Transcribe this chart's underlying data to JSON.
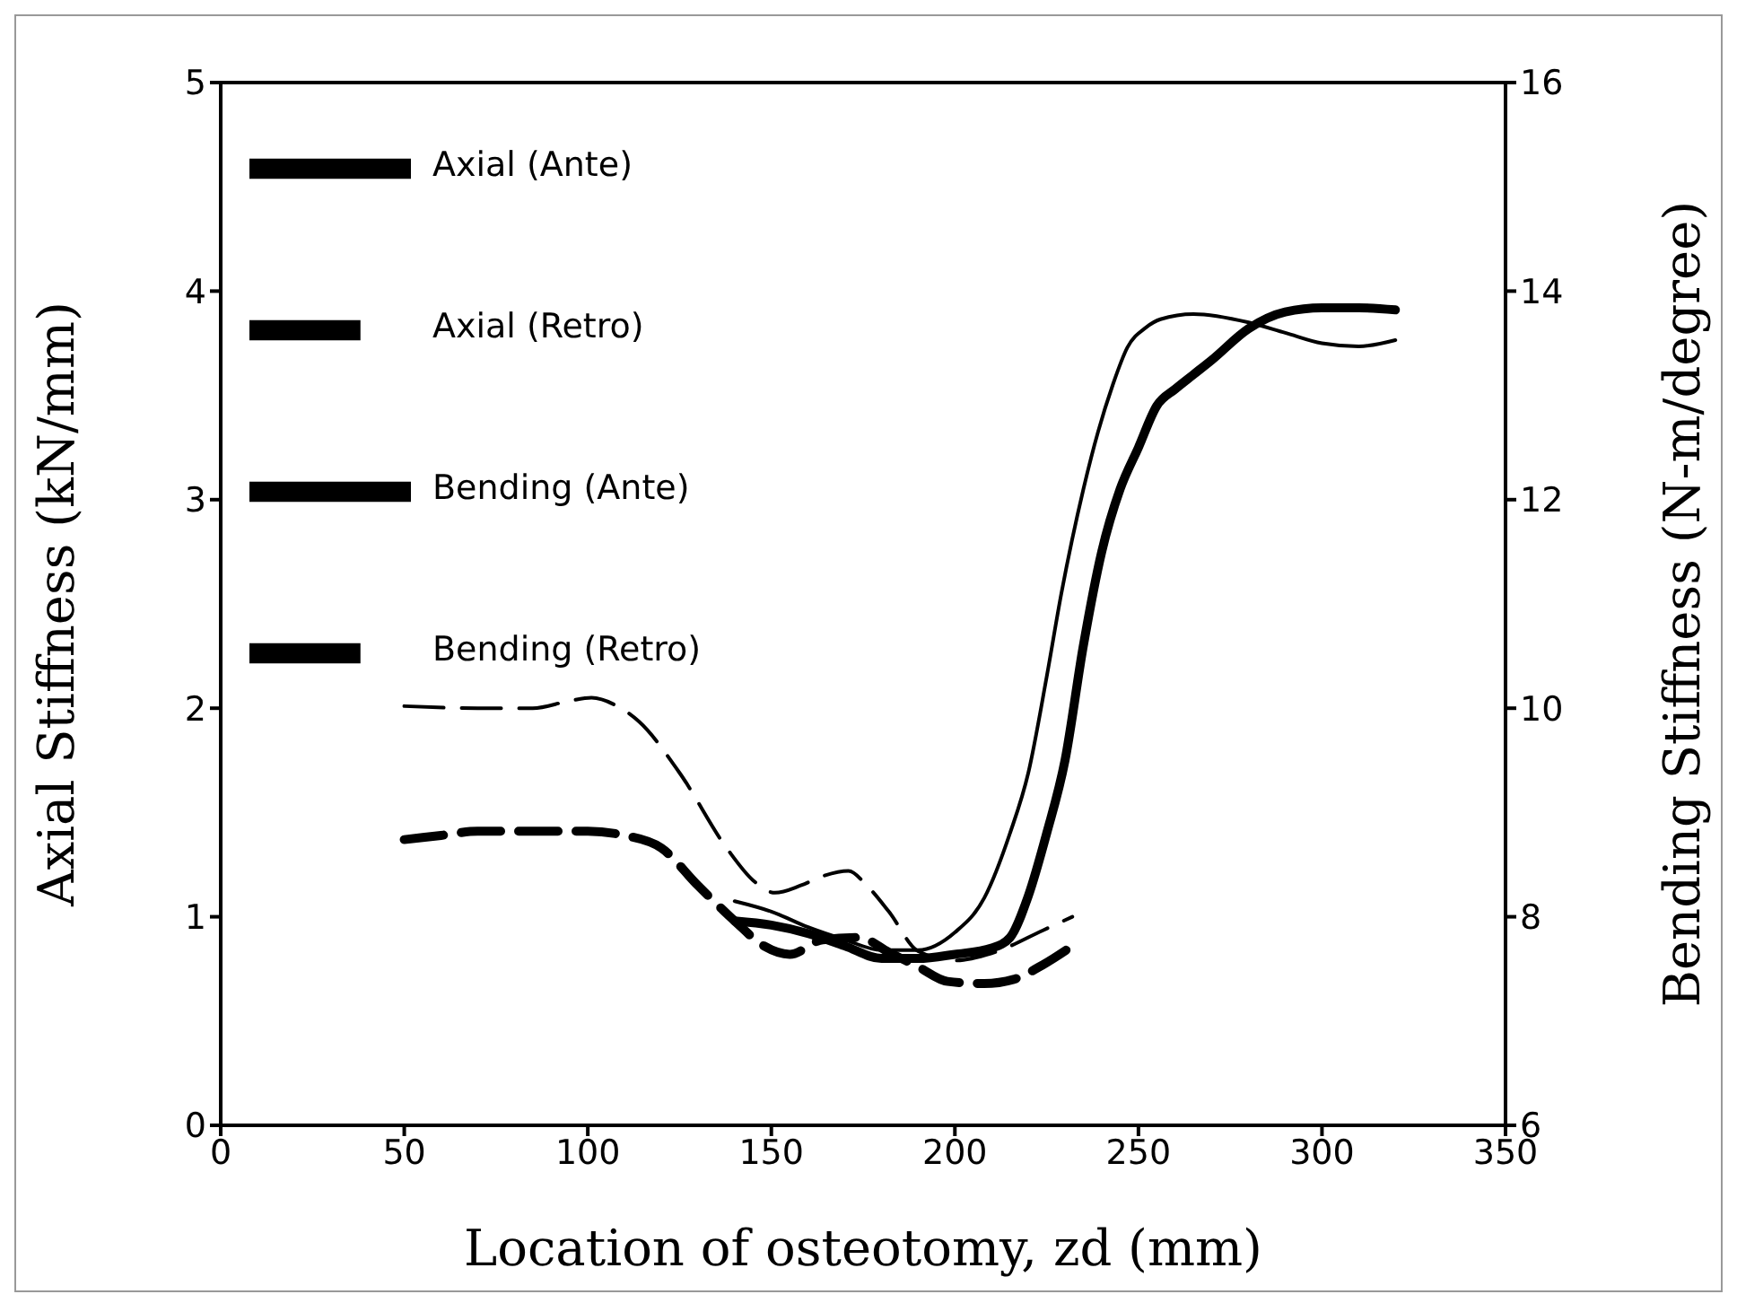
{
  "chart_data": {
    "type": "line",
    "xlabel": "Location of osteotomy, zd (mm)",
    "ylabel": "Axial Stiffness (kN/mm)",
    "y2label": "Bending Stiffness (N-m/degree)",
    "xlim": [
      0,
      350
    ],
    "xticks": [
      0,
      50,
      100,
      150,
      200,
      250,
      300,
      350
    ],
    "ylim": [
      0,
      5
    ],
    "yticks": [
      0,
      1,
      2,
      3,
      4,
      5
    ],
    "y2lim": [
      6,
      16
    ],
    "y2ticks": [
      6,
      8,
      10,
      12,
      14,
      16
    ],
    "legend": "top left",
    "marker": "none",
    "series": [
      {
        "name": "Axial (Ante)",
        "color": "#000000",
        "line_style": "solid",
        "x": [
          140,
          150,
          160,
          170,
          180,
          190,
          200,
          210,
          215,
          220,
          225,
          230,
          235,
          240,
          245,
          250,
          255,
          260,
          265,
          270,
          280,
          290,
          300,
          310,
          320
        ],
        "values": [
          0.98,
          0.96,
          0.92,
          0.86,
          0.8,
          0.8,
          0.82,
          0.85,
          0.9,
          1.1,
          1.4,
          1.75,
          2.3,
          2.75,
          3.05,
          3.25,
          3.45,
          3.53,
          3.6,
          3.67,
          3.82,
          3.9,
          3.92,
          3.92,
          3.91
        ]
      },
      {
        "name": "Axial (Retro)",
        "color": "#000000",
        "line_style": "dashed",
        "x": [
          50,
          60,
          70,
          90,
          100,
          110,
          120,
          130,
          140,
          148,
          155,
          164,
          174,
          182,
          190,
          198,
          208,
          216,
          224,
          232
        ],
        "values": [
          1.37,
          1.39,
          1.41,
          1.41,
          1.41,
          1.39,
          1.33,
          1.15,
          0.98,
          0.86,
          0.82,
          0.89,
          0.9,
          0.83,
          0.76,
          0.69,
          0.68,
          0.7,
          0.77,
          0.86
        ]
      },
      {
        "name": "Bending (Ante)",
        "color": "#000000",
        "line_style": "solid",
        "axis": "y2",
        "x": [
          140,
          150,
          160,
          170,
          180,
          190,
          200,
          208,
          215,
          220,
          225,
          229,
          235,
          239,
          243,
          247,
          252,
          256,
          265,
          280,
          290,
          300,
          310,
          320
        ],
        "values": [
          8.15,
          8.05,
          7.9,
          7.78,
          7.68,
          7.68,
          7.85,
          8.18,
          8.8,
          9.38,
          10.3,
          11.1,
          12.1,
          12.65,
          13.1,
          13.46,
          13.65,
          13.73,
          13.78,
          13.7,
          13.6,
          13.5,
          13.47,
          13.53
        ]
      },
      {
        "name": "Bending (Retro)",
        "color": "#000000",
        "line_style": "dashed",
        "axis": "y2",
        "x": [
          50,
          70,
          85,
          95,
          101,
          108,
          114,
          125,
          138,
          145,
          151,
          158,
          164,
          171,
          176,
          182,
          190,
          200,
          210,
          224,
          232
        ],
        "values": [
          10.02,
          10,
          10,
          10.07,
          10.1,
          10.02,
          9.87,
          9.38,
          8.65,
          8.35,
          8.23,
          8.3,
          8.39,
          8.44,
          8.3,
          8.05,
          7.67,
          7.58,
          7.65,
          7.87,
          8.0
        ]
      }
    ]
  }
}
